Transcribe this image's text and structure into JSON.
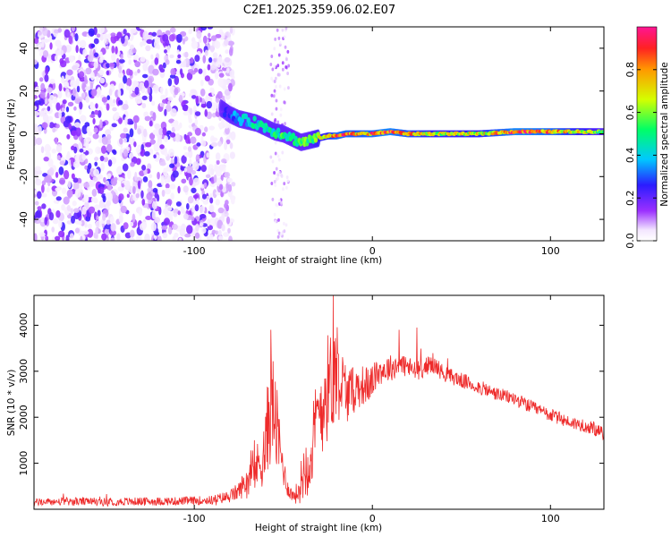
{
  "title": "C2E1.2025.359.06.02.E07",
  "colors": {
    "snr_line": "#ee2b2b",
    "axis": "#000000",
    "colormap": [
      "#ffffff",
      "#e8d4ff",
      "#8a2be2",
      "#1a1aff",
      "#00e5ff",
      "#00ff66",
      "#d4ff00",
      "#ff8c00",
      "#ff2222",
      "#ff00a0"
    ]
  },
  "chart_data": [
    {
      "type": "heatmap",
      "name": "spectrogram",
      "xlabel": "Height of straight line (km)",
      "ylabel": "Frequency (Hz)",
      "xlim": [
        -190,
        130
      ],
      "ylim": [
        -50,
        50
      ],
      "xticks": [
        -100,
        0,
        100
      ],
      "xtick_labels": [
        "-100",
        "0",
        "100"
      ],
      "yticks": [
        40,
        20,
        0,
        -20,
        -40
      ],
      "ytick_labels": [
        "40",
        "20",
        "0",
        "-20",
        "-40"
      ],
      "colorbar": {
        "label": "Normalized spectral amplitude",
        "range": [
          0,
          1
        ],
        "ticks": [
          0.0,
          0.2,
          0.4,
          0.6,
          0.8
        ],
        "tick_labels": [
          "0.0",
          "0.2",
          "0.4",
          "0.6",
          "0.8"
        ],
        "orientation": "vertical-right"
      },
      "signal_ridge": {
        "x": [
          -85,
          -80,
          -75,
          -70,
          -65,
          -60,
          -55,
          -50,
          -45,
          -40,
          -35,
          -30,
          -25,
          -20,
          -15,
          -10,
          0,
          10,
          20,
          40,
          60,
          80,
          100,
          120,
          130
        ],
        "frequency": [
          12,
          9,
          7,
          6,
          5,
          3,
          1,
          0,
          -2,
          -4,
          -3,
          -2,
          -1,
          -1,
          0,
          0,
          0,
          1,
          0,
          0,
          0,
          1,
          1,
          1,
          1
        ],
        "amplitude": [
          0.25,
          0.3,
          0.4,
          0.45,
          0.5,
          0.45,
          0.5,
          0.55,
          0.5,
          0.55,
          0.6,
          0.7,
          0.75,
          0.9,
          0.9,
          0.85,
          0.9,
          0.95,
          0.85,
          0.7,
          0.75,
          0.95,
          0.9,
          0.7,
          0.6
        ]
      },
      "noise_region_x": [
        -190,
        -78
      ],
      "noise_band_x": [
        -57,
        -47
      ]
    },
    {
      "type": "line",
      "name": "snr",
      "xlabel": "Height of straight line (km)",
      "ylabel": "SNR (10 * v/v)",
      "xlim": [
        -190,
        130
      ],
      "ylim": [
        0,
        4650
      ],
      "xticks": [
        -100,
        0,
        100
      ],
      "xtick_labels": [
        "-100",
        "0",
        "100"
      ],
      "yticks": [
        1000,
        2000,
        3000,
        4000
      ],
      "ytick_labels": [
        "1000",
        "2000",
        "3000",
        "4000"
      ],
      "series": [
        {
          "x": [
            -190,
            -170,
            -150,
            -130,
            -110,
            -90,
            -80,
            -75,
            -70,
            -65,
            -60,
            -58,
            -56,
            -54,
            -52,
            -50,
            -48,
            -45,
            -42,
            -38,
            -34,
            -30,
            -26,
            -22,
            -20,
            -18,
            -14,
            -10,
            -6,
            -2,
            0,
            4,
            8,
            12,
            16,
            20,
            24,
            28,
            32,
            36,
            40,
            50,
            60,
            70,
            80,
            90,
            100,
            110,
            120,
            130
          ],
          "y": [
            150,
            170,
            160,
            170,
            175,
            200,
            280,
            400,
            650,
            900,
            1300,
            2100,
            2300,
            1800,
            1300,
            900,
            500,
            300,
            350,
            900,
            1300,
            2100,
            2600,
            2800,
            3200,
            2800,
            2500,
            2600,
            2700,
            2700,
            2800,
            3000,
            3050,
            3100,
            3150,
            3100,
            3000,
            3050,
            3150,
            3100,
            2950,
            2800,
            2650,
            2500,
            2400,
            2200,
            2050,
            1900,
            1800,
            1650
          ],
          "noise_amplitude": [
            80,
            90,
            90,
            90,
            90,
            100,
            140,
            200,
            350,
            500,
            800,
            1200,
            1200,
            1000,
            700,
            400,
            200,
            150,
            250,
            700,
            900,
            1100,
            1200,
            1200,
            1100,
            900,
            600,
            500,
            450,
            400,
            350,
            300,
            300,
            280,
            260,
            250,
            220,
            200,
            200,
            200,
            180,
            170,
            160,
            150,
            150,
            150,
            150,
            140,
            140,
            140
          ],
          "peaks": [
            {
              "x": -57,
              "y": 3900
            },
            {
              "x": -22,
              "y": 4650
            },
            {
              "x": 15,
              "y": 3900
            },
            {
              "x": 25,
              "y": 3950
            }
          ]
        }
      ]
    }
  ]
}
